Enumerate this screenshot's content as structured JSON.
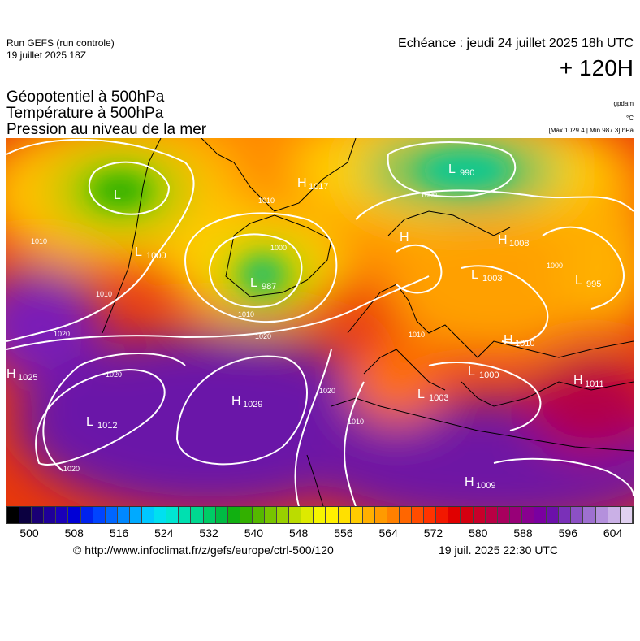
{
  "header": {
    "run_title": "Run GEFS (run controle)",
    "run_date": "19 juillet 2025 18Z",
    "echeance": "Echéance : jeudi 24 juillet 2025 18h UTC",
    "lead_time": "+ 120H"
  },
  "legend": {
    "line1": "Géopotentiel à 500hPa",
    "line2": "Température à 500hPa",
    "line3": "Pression au niveau de la mer",
    "unit_geopotential": "gpdam",
    "unit_temperature": "°C",
    "range": "[Max 1029.4 | Min 987.3] hPa"
  },
  "pressure_centers": [
    {
      "type": "L",
      "value": ""
    },
    {
      "type": "H",
      "value": "1017"
    },
    {
      "type": "L",
      "value": "990"
    },
    {
      "type": "L",
      "value": "1000"
    },
    {
      "type": "H",
      "value": ""
    },
    {
      "type": "H",
      "value": "1008"
    },
    {
      "type": "L",
      "value": "987"
    },
    {
      "type": "L",
      "value": "1003"
    },
    {
      "type": "L",
      "value": "995"
    },
    {
      "type": "H",
      "value": "1025"
    },
    {
      "type": "H",
      "value": "1010"
    },
    {
      "type": "L",
      "value": "1000"
    },
    {
      "type": "H",
      "value": "1029"
    },
    {
      "type": "L",
      "value": "1012"
    },
    {
      "type": "H",
      "value": "1011"
    },
    {
      "type": "L",
      "value": "1003"
    },
    {
      "type": "H",
      "value": "1009"
    }
  ],
  "isobar_labels": [
    "1010",
    "1000",
    "1000",
    "1010",
    "1020",
    "1020",
    "1020",
    "1020",
    "1010",
    "1000",
    "1010",
    "1020",
    "1010",
    "1010"
  ],
  "scale": {
    "labels": [
      "500",
      "508",
      "516",
      "524",
      "532",
      "540",
      "548",
      "556",
      "564",
      "572",
      "580",
      "588",
      "596",
      "604"
    ],
    "colors": [
      "#000000",
      "#0b0040",
      "#1a0075",
      "#1f0099",
      "#1a00b8",
      "#0000d6",
      "#0022ee",
      "#0044ff",
      "#0066ff",
      "#0088ff",
      "#00aaff",
      "#00c8ff",
      "#00e0f0",
      "#00e6d2",
      "#00e0b0",
      "#00d890",
      "#00cc66",
      "#00bb44",
      "#11b011",
      "#33b000",
      "#55b800",
      "#77c400",
      "#99d000",
      "#bbdc00",
      "#ddea00",
      "#f5f500",
      "#fff000",
      "#ffe000",
      "#ffcc00",
      "#ffb000",
      "#ff9a00",
      "#ff8000",
      "#ff6600",
      "#ff4c00",
      "#ff3300",
      "#f21800",
      "#e00000",
      "#d40010",
      "#c8002a",
      "#b80044",
      "#a8005e",
      "#980078",
      "#880090",
      "#7a00a0",
      "#6c10aa",
      "#7a30b8",
      "#8c50c4",
      "#9e70d0",
      "#b490dc",
      "#cab0e6",
      "#e0d0f0"
    ]
  },
  "footer": {
    "credit": "© http://www.infoclimat.fr/z/gefs/europe/ctrl-500/120",
    "timestamp": "19 juil. 2025 22:30 UTC"
  }
}
